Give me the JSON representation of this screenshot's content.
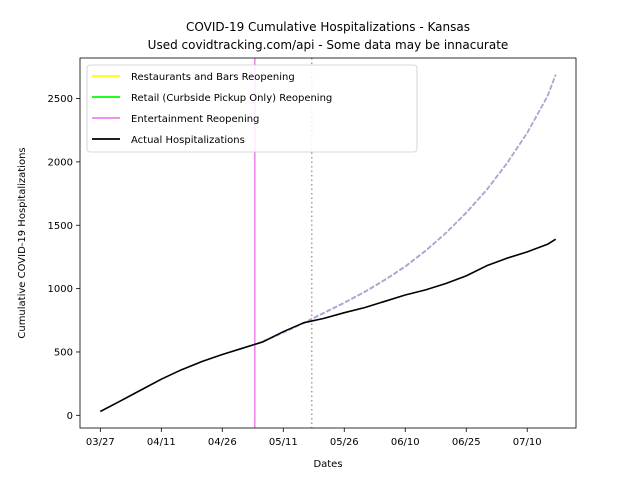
{
  "chart_data": {
    "type": "line",
    "title": "COVID-19 Cumulative Hospitalizations - Kansas",
    "subtitle": "Used covidtracking.com/api - Some data may be innacurate",
    "xlabel": "Dates",
    "ylabel": "Cumulative COVID-19 Hospitalizations",
    "x_type": "date",
    "x_ticks": [
      "03/27",
      "04/11",
      "04/26",
      "05/11",
      "05/26",
      "06/10",
      "06/25",
      "07/10"
    ],
    "x_tick_dates": [
      "2020-03-27",
      "2020-04-11",
      "2020-04-26",
      "2020-05-11",
      "2020-05-26",
      "2020-06-10",
      "2020-06-25",
      "2020-07-10"
    ],
    "xlim": [
      "2020-03-22",
      "2020-07-22"
    ],
    "y_ticks": [
      0,
      500,
      1000,
      1500,
      2000,
      2500
    ],
    "ylim": [
      -100,
      2820
    ],
    "grid": false,
    "legend_position": "top-left",
    "legend": [
      {
        "label": "Restaurants and Bars Reopening",
        "color": "#ffff00"
      },
      {
        "label": "Retail (Curbside Pickup Only) Reopening",
        "color": "#00ff00"
      },
      {
        "label": "Entertainment Reopening",
        "color": "#ee82ee"
      },
      {
        "label": "Actual Hospitalizations",
        "color": "#000000"
      }
    ],
    "vertical_lines": [
      {
        "x": "2020-05-04",
        "color": "#ee82ee",
        "style": "solid"
      },
      {
        "x": "2020-05-18",
        "color": "#c48ca0",
        "style": "dotted"
      }
    ],
    "series": [
      {
        "name": "Actual Hospitalizations",
        "color": "#000000",
        "style": "solid",
        "x": [
          "2020-03-27",
          "2020-04-01",
          "2020-04-06",
          "2020-04-11",
          "2020-04-16",
          "2020-04-21",
          "2020-04-26",
          "2020-05-01",
          "2020-05-06",
          "2020-05-11",
          "2020-05-16",
          "2020-05-21",
          "2020-05-26",
          "2020-05-31",
          "2020-06-05",
          "2020-06-10",
          "2020-06-15",
          "2020-06-20",
          "2020-06-25",
          "2020-06-30",
          "2020-07-05",
          "2020-07-10",
          "2020-07-15",
          "2020-07-17"
        ],
        "y": [
          30,
          115,
          200,
          285,
          360,
          425,
          480,
          530,
          580,
          660,
          730,
          765,
          810,
          850,
          900,
          950,
          990,
          1040,
          1100,
          1180,
          1240,
          1290,
          1350,
          1390
        ]
      },
      {
        "name": "Projection",
        "color": "#c48ca0",
        "style": "dashed",
        "x": [
          "2020-05-06",
          "2020-05-11",
          "2020-05-16",
          "2020-05-21",
          "2020-05-26",
          "2020-05-31",
          "2020-06-05",
          "2020-06-10",
          "2020-06-15",
          "2020-06-20",
          "2020-06-25",
          "2020-06-30",
          "2020-07-05",
          "2020-07-10",
          "2020-07-15",
          "2020-07-17"
        ],
        "y": [
          585,
          655,
          730,
          810,
          890,
          975,
          1070,
          1175,
          1300,
          1440,
          1600,
          1780,
          1990,
          2230,
          2520,
          2690
        ]
      },
      {
        "name": "Projection 2",
        "color": "#a8a8d8",
        "style": "dashed",
        "x": [
          "2020-05-06",
          "2020-05-11",
          "2020-05-16",
          "2020-05-21",
          "2020-05-26",
          "2020-05-31",
          "2020-06-05",
          "2020-06-10",
          "2020-06-15",
          "2020-06-20",
          "2020-06-25",
          "2020-06-30",
          "2020-07-05",
          "2020-07-10",
          "2020-07-15",
          "2020-07-17"
        ],
        "y": [
          582,
          652,
          727,
          807,
          887,
          972,
          1067,
          1172,
          1297,
          1437,
          1597,
          1777,
          1987,
          2227,
          2517,
          2687
        ]
      }
    ]
  }
}
